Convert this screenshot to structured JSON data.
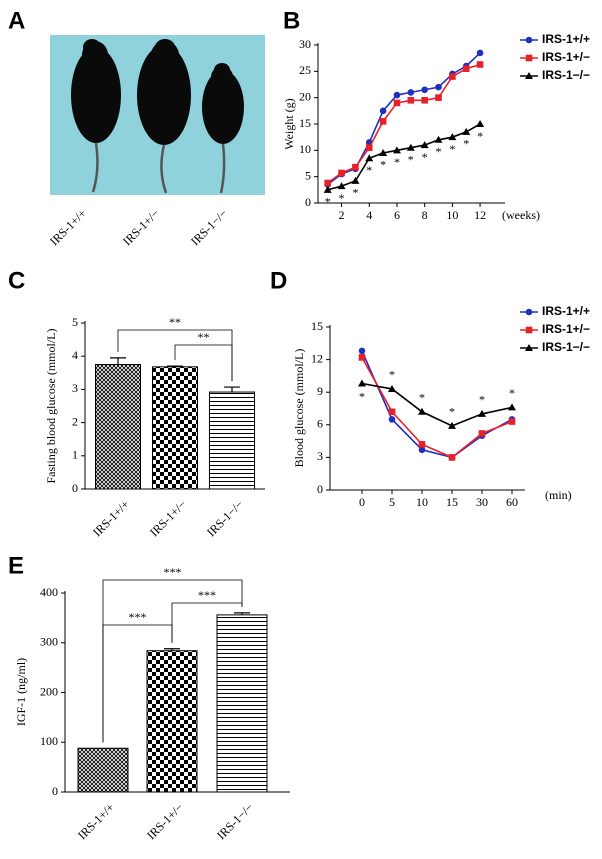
{
  "photo": {
    "panel": "A",
    "captions": [
      "IRS-1+/+",
      "IRS-1+/−",
      "IRS-1−/−"
    ]
  },
  "chart_data": [
    {
      "type": "line",
      "panel": "B",
      "y_label": "Weight (g)",
      "x_label": "(weeks)",
      "x": [
        1,
        2,
        3,
        4,
        5,
        6,
        7,
        8,
        9,
        10,
        11,
        12
      ],
      "xlim": [
        0.3,
        13.8
      ],
      "xticks": [
        2,
        4,
        6,
        8,
        10,
        12
      ],
      "ylim": [
        0,
        30
      ],
      "yticks": [
        0,
        5,
        10,
        15,
        20,
        25,
        30
      ],
      "legend": "upper right",
      "marker_text": "*",
      "series": [
        {
          "name": "IRS-1+/+",
          "color": "#1f2fbf",
          "marker": "circle",
          "values": [
            3.5,
            5.5,
            6.5,
            11.5,
            17.5,
            20.5,
            21,
            21.5,
            22,
            24.5,
            26,
            28.5
          ]
        },
        {
          "name": "IRS-1+/−",
          "color": "#e8202a",
          "marker": "square",
          "values": [
            3.8,
            5.7,
            6.8,
            10.5,
            15.5,
            19,
            19.5,
            19.5,
            20,
            24,
            25.5,
            26.3
          ]
        },
        {
          "name": "IRS-1−/−",
          "color": "#000000",
          "marker": "triangle",
          "values": [
            2.5,
            3.2,
            4.2,
            8.5,
            9.5,
            10,
            10.5,
            11,
            12,
            12.5,
            13.5,
            15
          ]
        }
      ]
    },
    {
      "type": "bar",
      "panel": "C",
      "y_label": "Fasting    blood glucose (mmol/L)",
      "categories": [
        "IRS-1+/+",
        "IRS-1+/−",
        "IRS-1−/−"
      ],
      "values": [
        3.75,
        3.68,
        2.92
      ],
      "errors": [
        0.2,
        0.02,
        0.15
      ],
      "ylim": [
        0,
        5
      ],
      "yticks": [
        0,
        1,
        2,
        3,
        4,
        5
      ],
      "color": "#000000",
      "annotations": [
        "**",
        "**"
      ]
    },
    {
      "type": "line",
      "panel": "D",
      "y_label": "Blood glucose (mmol/L)",
      "x_label": "(min)",
      "categories": [
        "0",
        "5",
        "10",
        "15",
        "30",
        "60"
      ],
      "ylim": [
        0,
        15
      ],
      "yticks": [
        0,
        3,
        6,
        9,
        12,
        15
      ],
      "legend": "upper right",
      "marker_text": "*",
      "series": [
        {
          "name": "IRS-1+/+",
          "color": "#1f2fbf",
          "marker": "circle",
          "values": [
            12.8,
            6.5,
            3.7,
            3.0,
            5.0,
            6.5
          ]
        },
        {
          "name": "IRS-1+/−",
          "color": "#e8202a",
          "marker": "square",
          "values": [
            12.2,
            7.2,
            4.2,
            3.0,
            5.2,
            6.3
          ]
        },
        {
          "name": "IRS-1−/−",
          "color": "#000000",
          "marker": "triangle",
          "values": [
            9.8,
            9.3,
            7.2,
            5.9,
            7.0,
            7.6
          ]
        }
      ]
    },
    {
      "type": "bar",
      "panel": "E",
      "y_label": "IGF-1 (ng/ml)",
      "categories": [
        "IRS-1+/+",
        "IRS-1+/−",
        "IRS-1−/−"
      ],
      "values": [
        88,
        284,
        356
      ],
      "errors": [
        0,
        4,
        4
      ],
      "ylim": [
        0,
        400
      ],
      "yticks": [
        0,
        100,
        200,
        300,
        400
      ],
      "color": "#000000",
      "annotations": [
        "***",
        "***",
        "***"
      ]
    }
  ]
}
